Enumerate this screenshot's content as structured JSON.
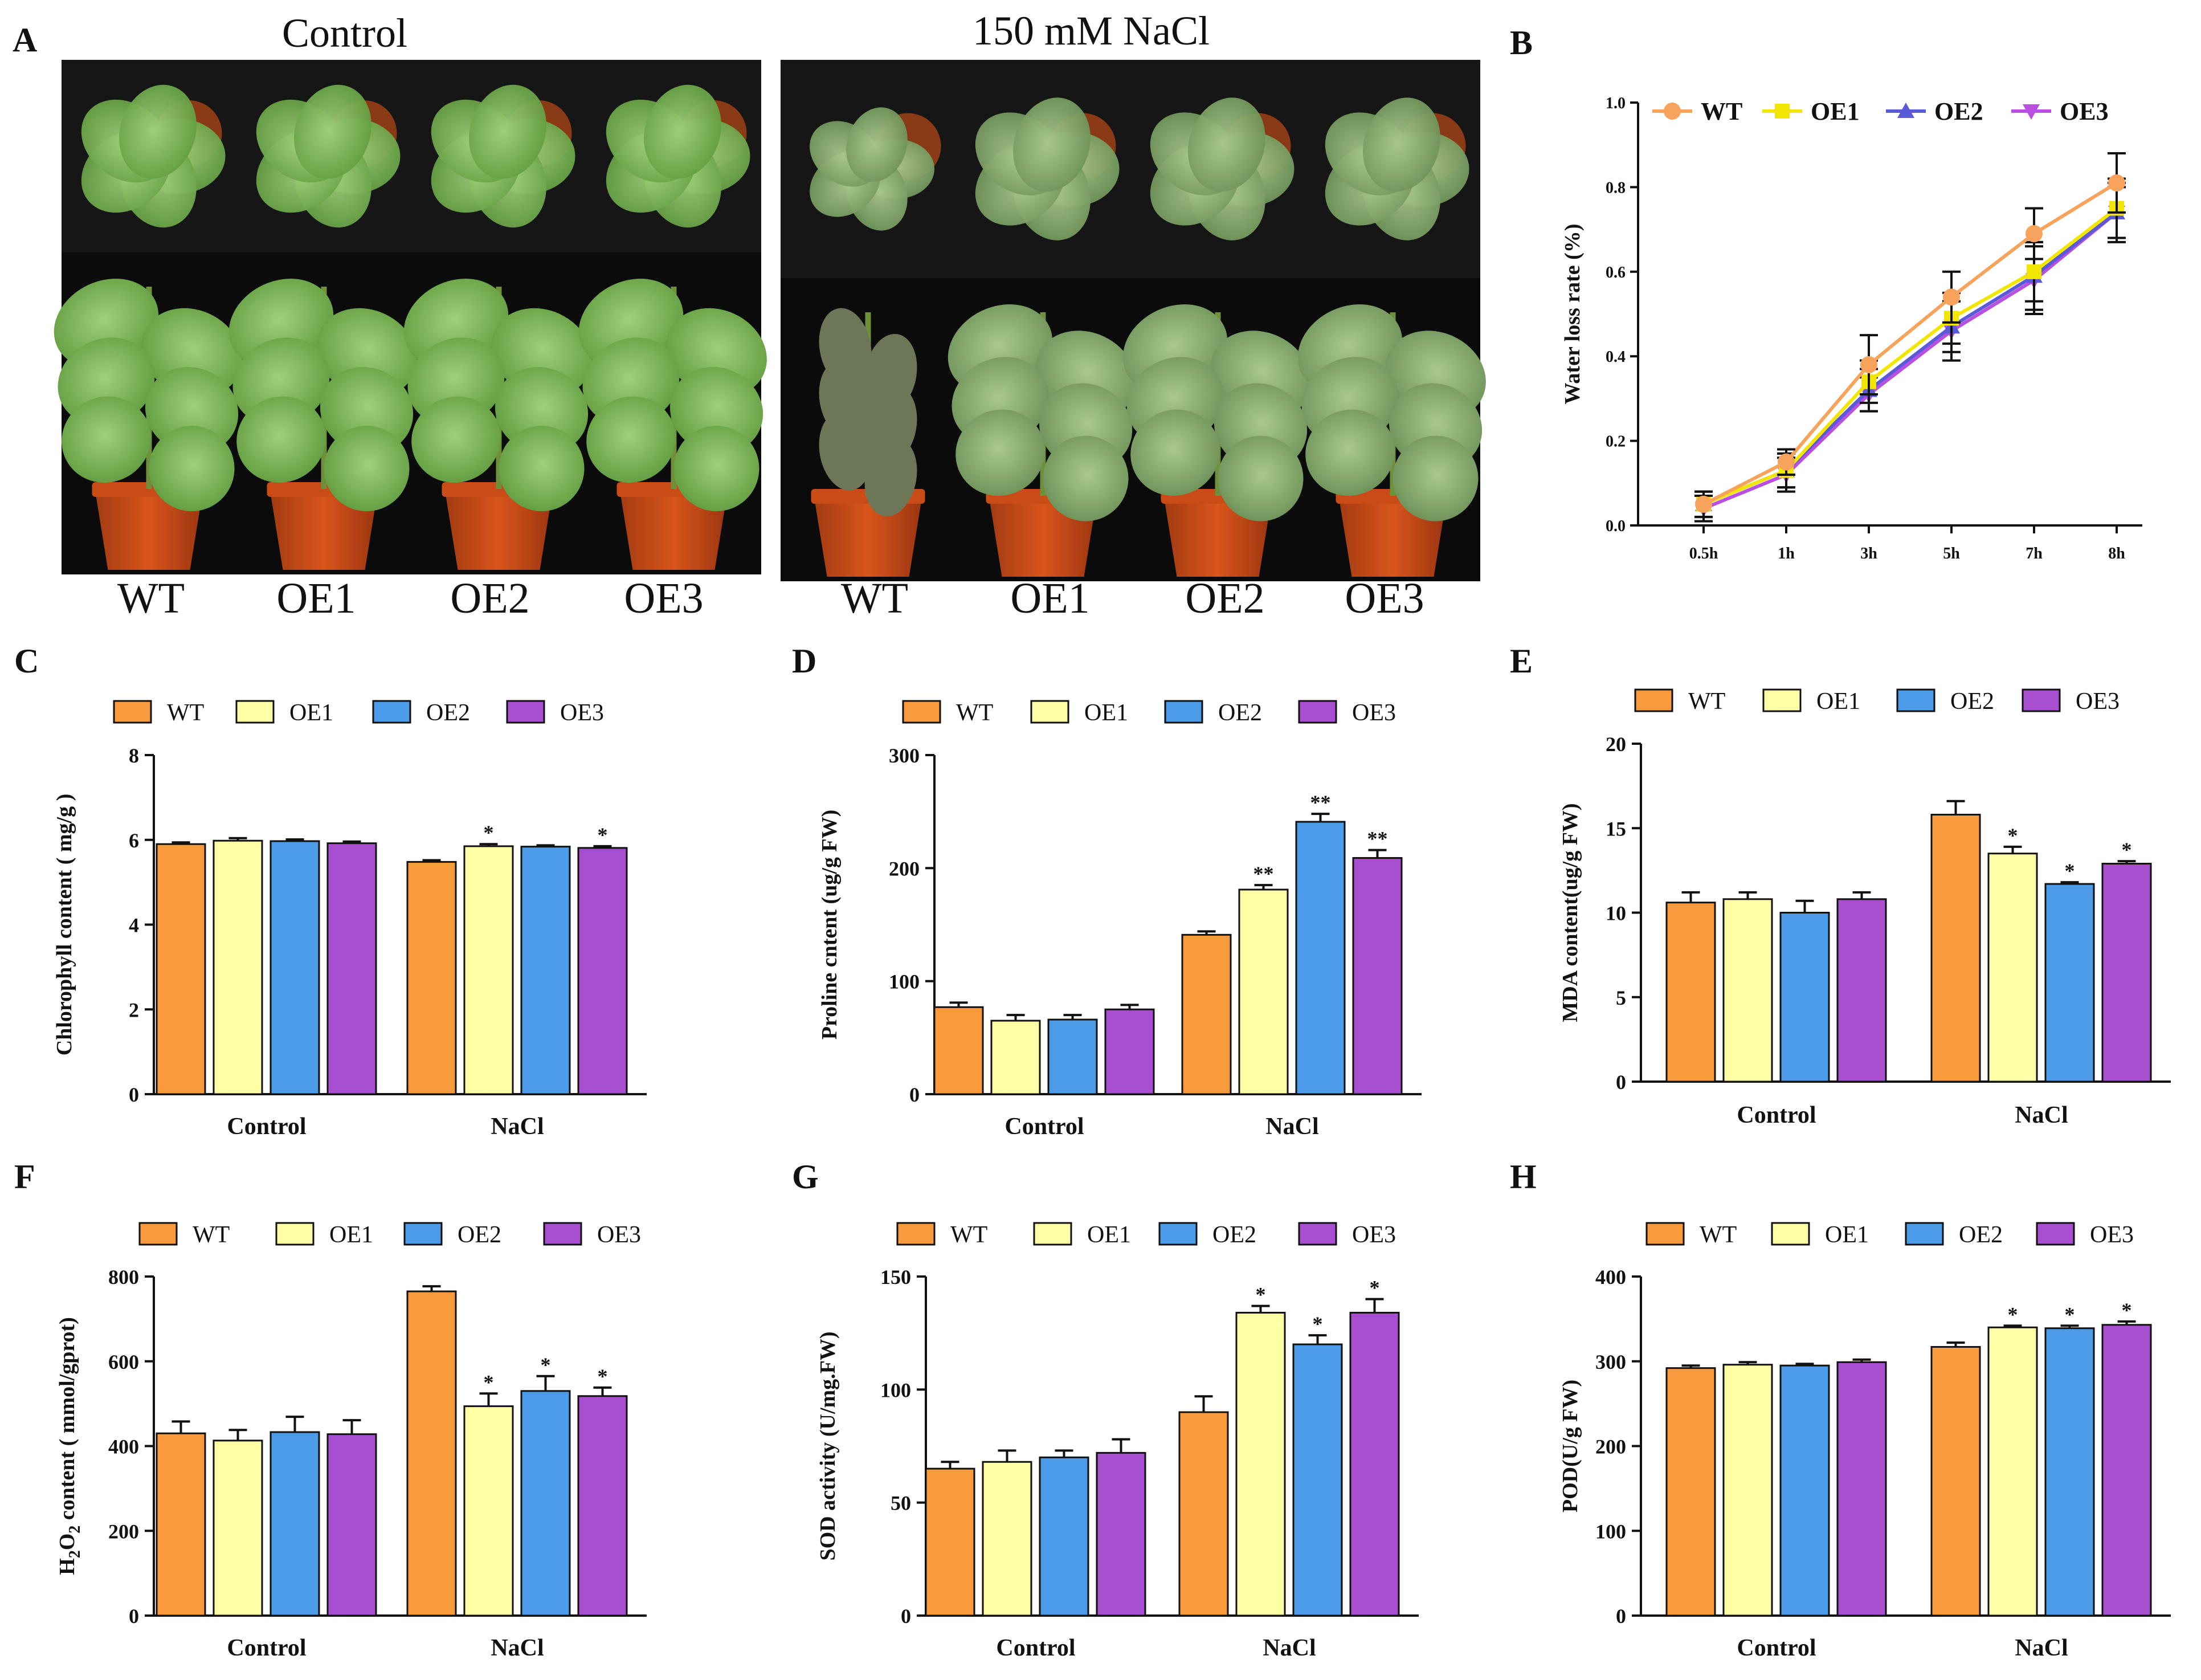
{
  "figure": {
    "panel_a": {
      "letter": "A",
      "left_title": "Control",
      "right_title": "150 mM NaCl",
      "genotypes": [
        "WT",
        "OE1",
        "OE2",
        "OE3"
      ],
      "photo_description_left": "control plants",
      "photo_description_right": "salt-treated plants"
    },
    "colors": {
      "WT": "#F99A3C",
      "OE1": "#FFFFA6",
      "OE2": "#4B9BE8",
      "OE3": "#A74FD0"
    }
  },
  "chart_data": [
    {
      "id": "B",
      "letter": "B",
      "type": "line",
      "x": [
        "0.5h",
        "1h",
        "3h",
        "5h",
        "7h",
        "8h"
      ],
      "ylabel": "Water loss  rate (%)",
      "ylim": [
        0,
        1.0
      ],
      "yticks": [
        "0.0",
        "0.2",
        "0.4",
        "0.6",
        "0.8",
        "1.0"
      ],
      "line_colors": [
        "#F7A35C",
        "#F2E600",
        "#5A5AD8",
        "#B94FE0"
      ],
      "series": [
        {
          "name": "WT",
          "values": [
            0.05,
            0.15,
            0.38,
            0.54,
            0.69,
            0.81
          ],
          "err": [
            0.03,
            0.03,
            0.07,
            0.06,
            0.06,
            0.07
          ]
        },
        {
          "name": "OE1",
          "values": [
            0.05,
            0.13,
            0.34,
            0.49,
            0.6,
            0.75
          ],
          "err": [
            0.03,
            0.04,
            0.05,
            0.06,
            0.07,
            0.07
          ]
        },
        {
          "name": "OE2",
          "values": [
            0.05,
            0.13,
            0.32,
            0.47,
            0.59,
            0.74
          ],
          "err": [
            0.03,
            0.04,
            0.05,
            0.06,
            0.08,
            0.06
          ]
        },
        {
          "name": "OE3",
          "values": [
            0.04,
            0.12,
            0.31,
            0.46,
            0.58,
            0.74
          ],
          "err": [
            0.03,
            0.04,
            0.04,
            0.07,
            0.08,
            0.07
          ]
        }
      ]
    },
    {
      "id": "C",
      "letter": "C",
      "type": "bar",
      "categories": [
        "Control",
        "NaCl"
      ],
      "ylabel": "Chlorophyll content ( mg/g )",
      "ylim": [
        0,
        8
      ],
      "yticks": [
        "0",
        "2",
        "4",
        "6",
        "8"
      ],
      "series": [
        {
          "name": "WT",
          "values": [
            5.9,
            5.48
          ],
          "err": [
            0.04,
            0.04
          ],
          "sig": [
            "",
            ""
          ]
        },
        {
          "name": "OE1",
          "values": [
            5.98,
            5.85
          ],
          "err": [
            0.06,
            0.05
          ],
          "sig": [
            "",
            "*"
          ]
        },
        {
          "name": "OE2",
          "values": [
            5.97,
            5.84
          ],
          "err": [
            0.04,
            0.03
          ],
          "sig": [
            "",
            ""
          ]
        },
        {
          "name": "OE3",
          "values": [
            5.92,
            5.81
          ],
          "err": [
            0.04,
            0.04
          ],
          "sig": [
            "",
            "*"
          ]
        }
      ]
    },
    {
      "id": "D",
      "letter": "D",
      "type": "bar",
      "categories": [
        "Control",
        "NaCl"
      ],
      "ylabel": "Proline cntent (ug/g FW)",
      "ylim": [
        0,
        300
      ],
      "yticks": [
        "0",
        "100",
        "200",
        "300"
      ],
      "series": [
        {
          "name": "WT",
          "values": [
            77,
            141
          ],
          "err": [
            4,
            3
          ],
          "sig": [
            "",
            ""
          ]
        },
        {
          "name": "OE1",
          "values": [
            65,
            181
          ],
          "err": [
            5,
            4
          ],
          "sig": [
            "",
            "**"
          ]
        },
        {
          "name": "OE2",
          "values": [
            66,
            241
          ],
          "err": [
            4,
            7
          ],
          "sig": [
            "",
            "**"
          ]
        },
        {
          "name": "OE3",
          "values": [
            75,
            209
          ],
          "err": [
            4,
            7
          ],
          "sig": [
            "",
            "**"
          ]
        }
      ]
    },
    {
      "id": "E",
      "letter": "E",
      "type": "bar",
      "categories": [
        "Control",
        "NaCl"
      ],
      "ylabel": "MDA content(ug/g FW)",
      "ylim": [
        0,
        20
      ],
      "yticks": [
        "0",
        "5",
        "10",
        "15",
        "20"
      ],
      "series": [
        {
          "name": "WT",
          "values": [
            10.6,
            15.8
          ],
          "err": [
            0.6,
            0.8
          ],
          "sig": [
            "",
            ""
          ]
        },
        {
          "name": "OE1",
          "values": [
            10.8,
            13.5
          ],
          "err": [
            0.4,
            0.4
          ],
          "sig": [
            "",
            "*"
          ]
        },
        {
          "name": "OE2",
          "values": [
            10.0,
            11.7
          ],
          "err": [
            0.7,
            0.1
          ],
          "sig": [
            "",
            "*"
          ]
        },
        {
          "name": "OE3",
          "values": [
            10.8,
            12.9
          ],
          "err": [
            0.4,
            0.15
          ],
          "sig": [
            "",
            "*"
          ]
        }
      ]
    },
    {
      "id": "F",
      "letter": "F",
      "type": "bar",
      "categories": [
        "Control",
        "NaCl"
      ],
      "ylabel_prefix": "H",
      "ylabel_sub1": "2",
      "ylabel_mid": "O",
      "ylabel_sub2": "2",
      "ylabel_suffix": " content ( mmol/gprot)",
      "ylim": [
        0,
        800
      ],
      "yticks": [
        "0",
        "200",
        "400",
        "600",
        "800"
      ],
      "series": [
        {
          "name": "WT",
          "values": [
            430,
            765
          ],
          "err": [
            28,
            12
          ],
          "sig": [
            "",
            ""
          ]
        },
        {
          "name": "OE1",
          "values": [
            413,
            494
          ],
          "err": [
            25,
            30
          ],
          "sig": [
            "",
            "*"
          ]
        },
        {
          "name": "OE2",
          "values": [
            433,
            530
          ],
          "err": [
            36,
            35
          ],
          "sig": [
            "",
            "*"
          ]
        },
        {
          "name": "OE3",
          "values": [
            428,
            518
          ],
          "err": [
            33,
            20
          ],
          "sig": [
            "",
            "*"
          ]
        }
      ]
    },
    {
      "id": "G",
      "letter": "G",
      "type": "bar",
      "categories": [
        "Control",
        "NaCl"
      ],
      "ylabel": "SOD activity (U/mg.FW)",
      "ylim": [
        0,
        150
      ],
      "yticks": [
        "0",
        "50",
        "100",
        "150"
      ],
      "series": [
        {
          "name": "WT",
          "values": [
            65,
            90
          ],
          "err": [
            3,
            7
          ],
          "sig": [
            "",
            ""
          ]
        },
        {
          "name": "OE1",
          "values": [
            68,
            134
          ],
          "err": [
            5,
            3
          ],
          "sig": [
            "",
            "*"
          ]
        },
        {
          "name": "OE2",
          "values": [
            70,
            120
          ],
          "err": [
            3,
            4
          ],
          "sig": [
            "",
            "*"
          ]
        },
        {
          "name": "OE3",
          "values": [
            72,
            134
          ],
          "err": [
            6,
            6
          ],
          "sig": [
            "",
            "*"
          ]
        }
      ]
    },
    {
      "id": "H",
      "letter": "H",
      "type": "bar",
      "categories": [
        "Control",
        "NaCl"
      ],
      "ylabel": "POD(U/g FW)",
      "ylim": [
        0,
        400
      ],
      "yticks": [
        "0",
        "100",
        "200",
        "300",
        "400"
      ],
      "series": [
        {
          "name": "WT",
          "values": [
            292,
            317
          ],
          "err": [
            3,
            5
          ],
          "sig": [
            "",
            ""
          ]
        },
        {
          "name": "OE1",
          "values": [
            296,
            340
          ],
          "err": [
            3,
            2
          ],
          "sig": [
            "",
            "*"
          ]
        },
        {
          "name": "OE2",
          "values": [
            295,
            339
          ],
          "err": [
            2,
            3
          ],
          "sig": [
            "",
            "*"
          ]
        },
        {
          "name": "OE3",
          "values": [
            299,
            343
          ],
          "err": [
            3,
            4
          ],
          "sig": [
            "",
            "*"
          ]
        }
      ]
    }
  ]
}
